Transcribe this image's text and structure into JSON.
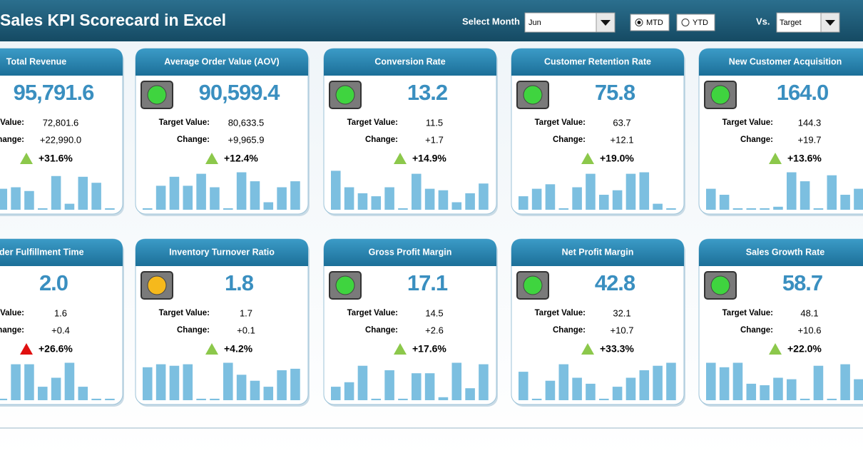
{
  "header": {
    "title": "Sales KPI Scorecard in Excel",
    "month_label": "Select Month",
    "month_value": "Jun",
    "mtd": "MTD",
    "ytd": "YTD",
    "selected_period": "MTD",
    "vs_label": "Vs.",
    "vs_value": "Target"
  },
  "cards": [
    {
      "title": "Total Revenue",
      "value": "95,791.6",
      "target_label": "Target Value:",
      "target": "72,801.6",
      "change_label": "Change:",
      "change": "+22,990.0",
      "pct": "+31.6%",
      "arrow_color": "#8cc84b",
      "bars": [
        40,
        30,
        20,
        28,
        30,
        25,
        2,
        45,
        8,
        44,
        36,
        2
      ]
    },
    {
      "title": "Average Order Value (AOV)",
      "value": "90,599.4",
      "target_label": "Target Value:",
      "target": "80,633.5",
      "change_label": "Change:",
      "change": "+9,965.9",
      "pct": "+12.4%",
      "light": "#3fd43f",
      "arrow_color": "#8cc84b",
      "bars": [
        2,
        32,
        44,
        32,
        48,
        30,
        2,
        50,
        38,
        10,
        30,
        38
      ]
    },
    {
      "title": "Conversion Rate",
      "value": "13.2",
      "target_label": "Target Value:",
      "target": "11.5",
      "change_label": "Change:",
      "change": "+1.7",
      "pct": "+14.9%",
      "light": "#3fd43f",
      "arrow_color": "#8cc84b",
      "bars": [
        52,
        30,
        22,
        18,
        30,
        2,
        48,
        28,
        26,
        10,
        22,
        35
      ]
    },
    {
      "title": "Customer Retention Rate",
      "value": "75.8",
      "target_label": "Target Value:",
      "target": "63.7",
      "change_label": "Change:",
      "change": "+12.1",
      "pct": "+19.0%",
      "light": "#3fd43f",
      "arrow_color": "#8cc84b",
      "bars": [
        18,
        28,
        34,
        2,
        30,
        48,
        20,
        26,
        48,
        50,
        8,
        2
      ]
    },
    {
      "title": "New Customer Acquisition",
      "value": "164.0",
      "target_label": "Target Value:",
      "target": "144.3",
      "change_label": "Change:",
      "change": "+19.7",
      "pct": "+13.6%",
      "light": "#3fd43f",
      "arrow_color": "#8cc84b",
      "bars": [
        28,
        20,
        2,
        2,
        2,
        4,
        50,
        38,
        2,
        46,
        20,
        28
      ]
    },
    {
      "title": "Order Fulfillment Time",
      "value": "2.0",
      "target_label": "Target Value:",
      "target": "1.6",
      "change_label": "Change:",
      "change": "+0.4",
      "pct": "+26.6%",
      "arrow_color": "#e01010",
      "bars": [
        30,
        2,
        48,
        2,
        48,
        48,
        18,
        30,
        50,
        18,
        2,
        2
      ]
    },
    {
      "title": "Inventory Turnover Ratio",
      "value": "1.8",
      "target_label": "Target Value:",
      "target": "1.7",
      "change_label": "Change:",
      "change": "+0.1",
      "pct": "+4.2%",
      "light": "#f6b91c",
      "arrow_color": "#8cc84b",
      "bars": [
        44,
        48,
        46,
        48,
        2,
        2,
        50,
        34,
        26,
        18,
        40,
        42
      ]
    },
    {
      "title": "Gross Profit Margin",
      "value": "17.1",
      "target_label": "Target Value:",
      "target": "14.5",
      "change_label": "Change:",
      "change": "+2.6",
      "pct": "+17.6%",
      "light": "#3fd43f",
      "arrow_color": "#8cc84b",
      "bars": [
        18,
        24,
        46,
        2,
        40,
        2,
        36,
        36,
        4,
        50,
        16,
        48
      ]
    },
    {
      "title": "Net Profit Margin",
      "value": "42.8",
      "target_label": "Target Value:",
      "target": "32.1",
      "change_label": "Change:",
      "change": "+10.7",
      "pct": "+33.3%",
      "light": "#3fd43f",
      "arrow_color": "#8cc84b",
      "bars": [
        38,
        2,
        26,
        48,
        30,
        22,
        2,
        18,
        30,
        40,
        46,
        50
      ]
    },
    {
      "title": "Sales Growth Rate",
      "value": "58.7",
      "target_label": "Target Value:",
      "target": "48.1",
      "change_label": "Change:",
      "change": "+10.6",
      "pct": "+22.0%",
      "light": "#3fd43f",
      "arrow_color": "#8cc84b",
      "bars": [
        50,
        44,
        50,
        22,
        20,
        30,
        28,
        2,
        46,
        2,
        48,
        28
      ]
    }
  ]
}
